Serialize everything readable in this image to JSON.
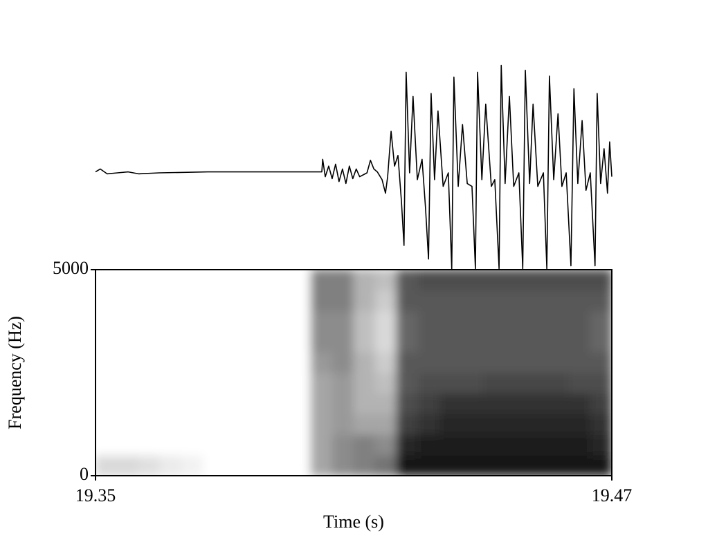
{
  "chart_data": [
    {
      "type": "line",
      "color": "#000000",
      "xlim": [
        19.35,
        19.47
      ],
      "ylim": [
        -1.2,
        1.2
      ],
      "x": [
        19.35,
        19.3511,
        19.3527,
        19.3551,
        19.3576,
        19.36,
        19.3648,
        19.3761,
        19.3921,
        19.4026,
        19.4028,
        19.4034,
        19.4042,
        19.405,
        19.4058,
        19.4066,
        19.4074,
        19.4082,
        19.409,
        19.4098,
        19.4106,
        19.4114,
        19.4131,
        19.4139,
        19.4147,
        19.4155,
        19.4166,
        19.4174,
        19.4179,
        19.4187,
        19.4195,
        19.4203,
        19.4211,
        19.4217,
        19.4222,
        19.423,
        19.4238,
        19.4248,
        19.4259,
        19.4267,
        19.4274,
        19.428,
        19.4288,
        19.4296,
        19.4308,
        19.432,
        19.4328,
        19.4333,
        19.4343,
        19.4353,
        19.4364,
        19.4375,
        19.4383,
        19.4388,
        19.4398,
        19.4407,
        19.442,
        19.4428,
        19.4438,
        19.4443,
        19.4452,
        19.4462,
        19.4472,
        19.4484,
        19.4493,
        19.4499,
        19.4509,
        19.4517,
        19.4528,
        19.4541,
        19.4549,
        19.4555,
        19.4565,
        19.4575,
        19.4584,
        19.4594,
        19.4605,
        19.4612,
        19.4621,
        19.4631,
        19.464,
        19.465,
        19.4661,
        19.4666,
        19.4674,
        19.4682,
        19.469,
        19.4695,
        19.47
      ],
      "values": [
        0.01,
        0.04,
        -0.01,
        0,
        0.01,
        -0.01,
        0,
        0.01,
        0.01,
        0.01,
        0.14,
        -0.04,
        0.07,
        -0.06,
        0.09,
        -0.09,
        0.04,
        -0.11,
        0.07,
        -0.06,
        0.04,
        -0.04,
        0,
        0.13,
        0.04,
        0.01,
        -0.07,
        -0.21,
        -0.04,
        0.43,
        0.07,
        0.18,
        -0.29,
        -0.75,
        1.04,
        0,
        0.79,
        -0.07,
        0.14,
        -0.36,
        -0.89,
        0.82,
        -0.07,
        0.64,
        -0.14,
        0,
        -0.99,
        0.99,
        -0.14,
        0.5,
        -0.11,
        -0.14,
        -0.99,
        1.04,
        -0.07,
        0.71,
        -0.14,
        -0.07,
        -0.99,
        1.11,
        -0.11,
        0.79,
        -0.14,
        0,
        -0.99,
        1.06,
        -0.11,
        0.71,
        -0.14,
        0,
        -0.99,
        1.0,
        -0.07,
        0.61,
        -0.14,
        0,
        -0.96,
        0.87,
        -0.11,
        0.54,
        -0.18,
        0,
        -0.96,
        0.82,
        -0.11,
        0.25,
        -0.21,
        0.32,
        -0.04
      ]
    },
    {
      "type": "heatmap",
      "xlabel": "Time (s)",
      "ylabel": "Frequency (Hz)",
      "xlim": [
        19.35,
        19.47
      ],
      "ylim": [
        0,
        5000
      ],
      "xticks": [
        19.35,
        19.47
      ],
      "yticks": [
        0,
        5000
      ],
      "z": [
        [
          15,
          15,
          12,
          8,
          5,
          0,
          0,
          0,
          0,
          0,
          35,
          45,
          50,
          55,
          90,
          90,
          90,
          90,
          90,
          90,
          90,
          90,
          90,
          90
        ],
        [
          0,
          0,
          0,
          0,
          0,
          0,
          0,
          0,
          0,
          0,
          35,
          45,
          50,
          45,
          85,
          88,
          88,
          88,
          88,
          88,
          88,
          88,
          88,
          85
        ],
        [
          0,
          0,
          0,
          0,
          0,
          0,
          0,
          0,
          0,
          0,
          35,
          40,
          35,
          35,
          75,
          80,
          85,
          85,
          85,
          85,
          85,
          85,
          85,
          80
        ],
        [
          0,
          0,
          0,
          0,
          0,
          0,
          0,
          0,
          0,
          0,
          35,
          40,
          30,
          30,
          70,
          75,
          80,
          80,
          80,
          80,
          80,
          80,
          80,
          75
        ],
        [
          0,
          0,
          0,
          0,
          0,
          0,
          0,
          0,
          0,
          0,
          35,
          40,
          30,
          25,
          65,
          70,
          70,
          70,
          72,
          72,
          72,
          72,
          70,
          70
        ],
        [
          0,
          0,
          0,
          0,
          0,
          0,
          0,
          0,
          0,
          0,
          40,
          45,
          30,
          20,
          65,
          65,
          65,
          65,
          65,
          65,
          65,
          65,
          65,
          65
        ],
        [
          0,
          0,
          0,
          0,
          0,
          0,
          0,
          0,
          0,
          0,
          45,
          45,
          25,
          15,
          60,
          65,
          65,
          65,
          65,
          65,
          65,
          65,
          65,
          60
        ],
        [
          0,
          0,
          0,
          0,
          0,
          0,
          0,
          0,
          0,
          0,
          45,
          45,
          25,
          15,
          60,
          65,
          65,
          65,
          65,
          65,
          65,
          65,
          65,
          60
        ],
        [
          0,
          0,
          0,
          0,
          0,
          0,
          0,
          0,
          0,
          0,
          50,
          50,
          30,
          20,
          65,
          65,
          65,
          65,
          65,
          65,
          65,
          65,
          65,
          65
        ],
        [
          0,
          0,
          0,
          0,
          0,
          0,
          0,
          0,
          0,
          0,
          50,
          50,
          30,
          25,
          65,
          70,
          70,
          70,
          70,
          70,
          70,
          70,
          70,
          70
        ]
      ]
    }
  ]
}
